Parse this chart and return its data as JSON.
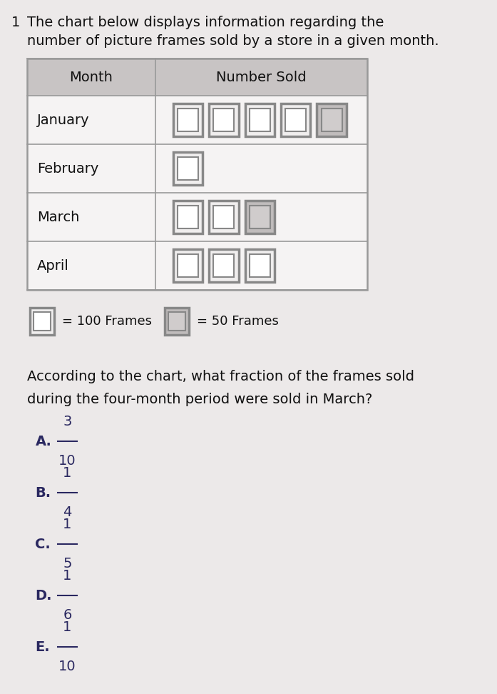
{
  "title_number": "1",
  "title_line1": "The chart below displays information regarding the",
  "title_line2": "number of picture frames sold by a store in a given month.",
  "col1_header": "Month",
  "col2_header": "Number Sold",
  "months": [
    "January",
    "February",
    "March",
    "April"
  ],
  "white_squares": [
    4,
    1,
    2,
    3
  ],
  "gray_squares": [
    1,
    0,
    1,
    0
  ],
  "legend_white_label": "= 100 Frames",
  "legend_gray_label": "= 50 Frames",
  "question_line1": "According to the chart, what fraction of the frames sold",
  "question_line2": "during the four-month period were sold in March?",
  "choices": [
    "A.",
    "B.",
    "C.",
    "D.",
    "E."
  ],
  "numerators": [
    "3",
    "1",
    "1",
    "1",
    "1"
  ],
  "denominators": [
    "10",
    "4",
    "5",
    "6",
    "10"
  ],
  "bg_color": "#ece9e9",
  "table_bg": "#f5f3f3",
  "header_bg": "#c8c4c4",
  "cell_border": "#999999",
  "white_sq_outer": "#888888",
  "white_sq_fill": "#f0eeee",
  "white_sq_inner": "#ffffff",
  "gray_sq_outer": "#888888",
  "gray_sq_fill": "#c0bcbc",
  "gray_sq_inner": "#d0cccc",
  "text_color": "#111111",
  "choice_color": "#2a2860"
}
